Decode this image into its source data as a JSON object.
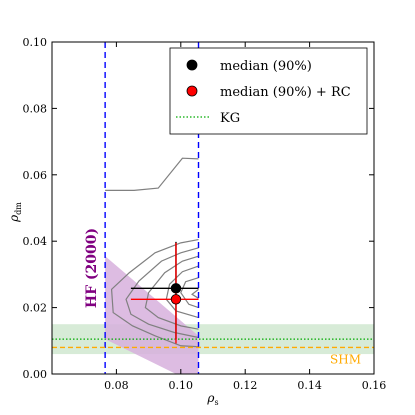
{
  "chart_data": {
    "type": "scatter",
    "xlabel": "ρ",
    "xlabel_sub": "s",
    "ylabel": "ρ",
    "ylabel_sub": "dm",
    "xlim": [
      0.06,
      0.16
    ],
    "ylim": [
      0.0,
      0.1
    ],
    "xticks": [
      0.08,
      0.1,
      0.12,
      0.14,
      0.16
    ],
    "xtick_labels": [
      "0.08",
      "0.10",
      "0.12",
      "0.14",
      "0.16"
    ],
    "yticks": [
      0.0,
      0.02,
      0.04,
      0.06,
      0.08,
      0.1
    ],
    "ytick_labels": [
      "0.00",
      "0.02",
      "0.04",
      "0.06",
      "0.08",
      "0.10"
    ],
    "legend_position": "top-right",
    "series": [
      {
        "name": "median (90%)",
        "color": "#000000",
        "x": 0.0985,
        "y": 0.0258,
        "xerr": [
          0.0845,
          0.1055
        ],
        "yerr": [
          0.0105,
          0.0398
        ]
      },
      {
        "name": "median (90%) + RC",
        "color": "#ff0000",
        "x": 0.0985,
        "y": 0.0225,
        "xerr": [
          0.0845,
          0.1055
        ],
        "yerr": [
          0.0092,
          0.0395
        ]
      },
      {
        "name": "KG",
        "color": "#00aa00",
        "style": "dotted",
        "y": 0.0105
      }
    ],
    "kg_band": {
      "ymin": 0.006,
      "ymax": 0.015,
      "color": "#cde6cd"
    },
    "shm": {
      "label": "SHM",
      "y": 0.008,
      "color": "#ffaa00"
    },
    "hf": {
      "label": "HF (2000)",
      "color": "#800080",
      "fill": "#d7b0dd",
      "polygon": [
        [
          0.0765,
          0.0355
        ],
        [
          0.0765,
          0.0105
        ],
        [
          0.0985,
          0.0
        ],
        [
          0.1055,
          0.0
        ],
        [
          0.1055,
          0.0115
        ]
      ]
    },
    "vlines": {
      "x": [
        0.0765,
        0.1055
      ],
      "color": "#0000ff",
      "style": "dashed"
    },
    "contours": [
      [
        [
          0.0765,
          0.0553
        ],
        [
          0.0855,
          0.0553
        ],
        [
          0.093,
          0.056
        ],
        [
          0.1005,
          0.065
        ],
        [
          0.1055,
          0.0648
        ]
      ],
      [
        [
          0.1055,
          0.0405
        ],
        [
          0.1,
          0.0395
        ],
        [
          0.092,
          0.0365
        ],
        [
          0.084,
          0.0305
        ],
        [
          0.0785,
          0.0255
        ],
        [
          0.079,
          0.0185
        ],
        [
          0.085,
          0.0145
        ],
        [
          0.092,
          0.0115
        ],
        [
          0.1,
          0.0085
        ],
        [
          0.1055,
          0.0082
        ]
      ],
      [
        [
          0.1055,
          0.038
        ],
        [
          0.1,
          0.0365
        ],
        [
          0.094,
          0.034
        ],
        [
          0.087,
          0.028
        ],
        [
          0.083,
          0.0225
        ],
        [
          0.0845,
          0.018
        ],
        [
          0.09,
          0.015
        ],
        [
          0.098,
          0.0125
        ],
        [
          0.1055,
          0.011
        ]
      ],
      [
        [
          0.1055,
          0.0355
        ],
        [
          0.1005,
          0.034
        ],
        [
          0.095,
          0.0305
        ],
        [
          0.09,
          0.0245
        ],
        [
          0.089,
          0.02
        ],
        [
          0.093,
          0.017
        ],
        [
          0.1,
          0.0145
        ],
        [
          0.1055,
          0.0135
        ]
      ],
      [
        [
          0.1055,
          0.0325
        ],
        [
          0.1005,
          0.0308
        ],
        [
          0.0965,
          0.027
        ],
        [
          0.0955,
          0.0225
        ],
        [
          0.0985,
          0.019
        ],
        [
          0.1055,
          0.017
        ]
      ],
      [
        [
          0.1055,
          0.029
        ],
        [
          0.1015,
          0.0278
        ],
        [
          0.1,
          0.0245
        ],
        [
          0.1025,
          0.021
        ],
        [
          0.1055,
          0.02
        ]
      ],
      [
        [
          0.1055,
          0.0255
        ],
        [
          0.1035,
          0.024
        ],
        [
          0.1055,
          0.0228
        ]
      ]
    ]
  }
}
